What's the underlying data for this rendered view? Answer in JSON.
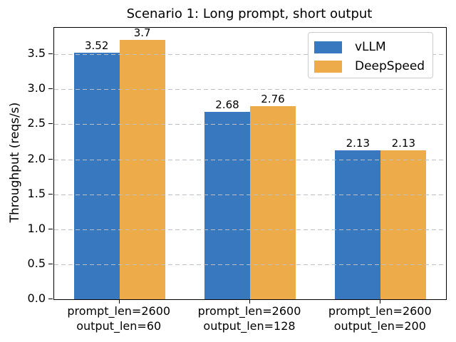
{
  "chart_data": {
    "type": "bar",
    "title": "Scenario 1: Long prompt, short output",
    "xlabel": "",
    "ylabel": "Throughput (reqs/s)",
    "categories": [
      "prompt_len=2600\noutput_len=60",
      "prompt_len=2600\noutput_len=128",
      "prompt_len=2600\noutput_len=200"
    ],
    "series": [
      {
        "name": "vLLM",
        "color": "#3778be",
        "values": [
          3.52,
          2.68,
          2.13
        ],
        "value_labels": [
          "3.52",
          "2.68",
          "2.13"
        ]
      },
      {
        "name": "DeepSpeed",
        "color": "#edac49",
        "values": [
          3.7,
          2.76,
          2.13
        ],
        "value_labels": [
          "3.7",
          "2.76",
          "2.13"
        ]
      }
    ],
    "ylim": [
      0,
      3.877
    ],
    "yticks": [
      0.0,
      0.5,
      1.0,
      1.5,
      2.0,
      2.5,
      3.0,
      3.5
    ],
    "ytick_labels": [
      "0.0",
      "0.5",
      "1.0",
      "1.5",
      "2.0",
      "2.5",
      "3.0",
      "3.5"
    ],
    "grid": "horizontal-dashed",
    "grid_above_bars": true,
    "legend_position": "upper right",
    "bar_value_labels": true
  },
  "colors": {
    "vllm_blue": "#3778be",
    "deepspeed_orange": "#edac49",
    "gridline": "#bdbfc4",
    "spine": "#000000",
    "legend_border": "#cccccc",
    "background": "#ffffff",
    "text": "#000000"
  }
}
